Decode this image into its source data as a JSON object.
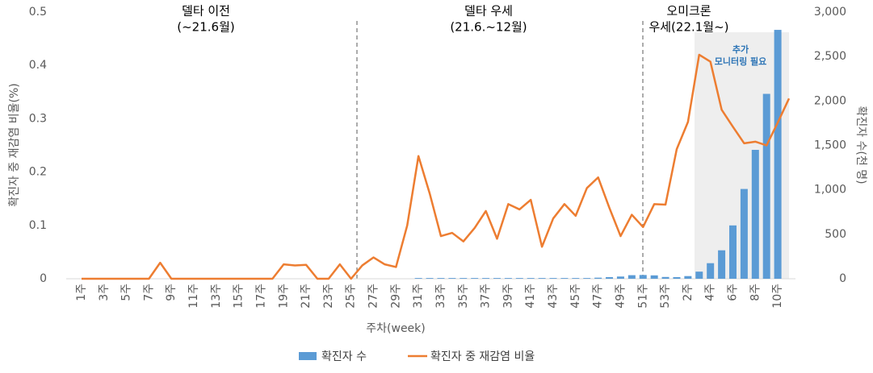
{
  "chart_data": {
    "type": "combo",
    "x_label": "주차(week)",
    "y_label": "확진자 중 재감염 비율(%)",
    "y2_label": "확진자 수(천 명)",
    "categories": [
      "1주",
      null,
      "3주",
      null,
      "5주",
      null,
      "7주",
      null,
      "9주",
      null,
      "11주",
      null,
      "13주",
      null,
      "15주",
      null,
      "17주",
      null,
      "19주",
      null,
      "21주",
      null,
      "23주",
      null,
      "25주",
      null,
      "27주",
      null,
      "29주",
      null,
      "31주",
      null,
      "33주",
      null,
      "35주",
      null,
      "37주",
      null,
      "39주",
      null,
      "41주",
      null,
      "43주",
      null,
      "45주",
      null,
      "47주",
      null,
      "49주",
      null,
      "51주",
      null,
      "53주",
      null,
      "2주",
      null,
      "4주",
      null,
      "6주",
      null,
      "8주",
      null,
      "10주",
      null
    ],
    "series": [
      {
        "name": "확진자 수",
        "type": "bar",
        "axis": "y2",
        "color": "#5b9bd5",
        "values": [
          0,
          0,
          0,
          0,
          0,
          0,
          0,
          0,
          0,
          0,
          0,
          0,
          0,
          0,
          0,
          0,
          0,
          0,
          0,
          0,
          0,
          0,
          0,
          0,
          0,
          0,
          0,
          0,
          0,
          0,
          8,
          8,
          8,
          8,
          8,
          8,
          8,
          8,
          8,
          8,
          8,
          8,
          8,
          8,
          8,
          8,
          12,
          18,
          25,
          40,
          42,
          38,
          20,
          18,
          30,
          80,
          175,
          320,
          600,
          1010,
          1450,
          2080,
          2800,
          null
        ]
      },
      {
        "name": "확진자 중 재감염 비율",
        "type": "line",
        "color": "#ed7d31",
        "values": [
          0,
          0,
          0,
          0,
          0,
          0,
          0,
          0.03,
          0,
          0,
          0,
          0,
          0,
          0,
          0,
          0,
          0,
          0,
          0.027,
          0.025,
          0.026,
          0,
          0,
          0.027,
          0,
          0.025,
          0.04,
          0.027,
          0.022,
          0.1,
          0.23,
          0.16,
          0.08,
          0.086,
          0.07,
          0.095,
          0.127,
          0.075,
          0.14,
          0.13,
          0.148,
          0.06,
          0.113,
          0.14,
          0.118,
          0.17,
          0.19,
          0.133,
          0.08,
          0.12,
          0.097,
          0.14,
          0.139,
          0.243,
          0.294,
          0.42,
          0.407,
          0.317,
          0.285,
          0.254,
          0.257,
          0.25,
          0.293,
          0.338
        ]
      }
    ],
    "ylim": [
      0,
      0.5
    ],
    "yticks": [
      0,
      0.1,
      0.2,
      0.3,
      0.4,
      0.5
    ],
    "y2lim": [
      0,
      3000
    ],
    "y2ticks": [
      0,
      500,
      {
        "value": 1000,
        "label": "1,000"
      },
      {
        "value": 1500,
        "label": "1,500"
      },
      {
        "value": 2000,
        "label": "2,000"
      },
      {
        "value": 2500,
        "label": "2,500"
      },
      {
        "value": 3000,
        "label": "3,000"
      }
    ],
    "annotations": [
      "델타 이전",
      "(~21.6월)",
      "델타 우세",
      "(21.6.~12월)",
      "오미크론",
      "우세(22.1월~)",
      "추가",
      "모니터링 필요"
    ]
  }
}
